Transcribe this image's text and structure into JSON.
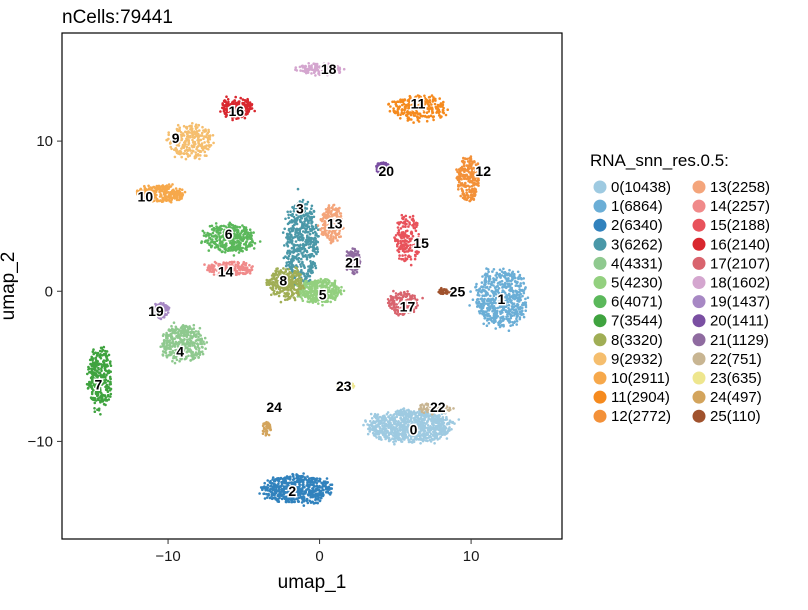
{
  "chart_data": {
    "type": "scatter",
    "title": "nCells:79441",
    "xlabel": "umap_1",
    "ylabel": "umap_2",
    "xlim": [
      -17,
      16
    ],
    "ylim": [
      -16.5,
      17.2
    ],
    "xticks": [
      -10,
      0,
      10
    ],
    "yticks": [
      -10,
      0,
      10
    ],
    "grid": false,
    "legend": {
      "title": "RNA_snn_res.0.5:",
      "position": "right",
      "columns": 2
    },
    "clusters": [
      {
        "id": "0",
        "label": "0(10438)",
        "count": 10438,
        "color": "#9ECAE1",
        "center": [
          6.0,
          -9.0
        ],
        "spread": [
          2.9,
          1.1
        ],
        "label_pos": [
          6.2,
          -9.2
        ]
      },
      {
        "id": "1",
        "label": "1(6864)",
        "count": 6864,
        "color": "#6BAED6",
        "center": [
          12.0,
          -0.5
        ],
        "spread": [
          1.8,
          2.0
        ],
        "label_pos": [
          12.0,
          -0.5
        ]
      },
      {
        "id": "2",
        "label": "2(6340)",
        "count": 6340,
        "color": "#3182BD",
        "center": [
          -1.5,
          -13.2
        ],
        "spread": [
          2.4,
          1.0
        ],
        "label_pos": [
          -1.8,
          -13.3
        ]
      },
      {
        "id": "3",
        "label": "3(6262)",
        "count": 6262,
        "color": "#4A98A8",
        "center": [
          -1.2,
          3.2
        ],
        "spread": [
          1.1,
          3.0
        ],
        "label_pos": [
          -1.3,
          5.5
        ]
      },
      {
        "id": "4",
        "label": "4(4331)",
        "count": 4331,
        "color": "#8FC98F",
        "center": [
          -9.0,
          -3.5
        ],
        "spread": [
          1.5,
          1.3
        ],
        "label_pos": [
          -9.2,
          -4.0
        ]
      },
      {
        "id": "5",
        "label": "5(4230)",
        "count": 4230,
        "color": "#93D07F",
        "center": [
          0.0,
          0.0
        ],
        "spread": [
          1.5,
          0.8
        ],
        "label_pos": [
          0.2,
          -0.2
        ]
      },
      {
        "id": "6",
        "label": "6(4071)",
        "count": 4071,
        "color": "#5BB85B",
        "center": [
          -6.0,
          3.5
        ],
        "spread": [
          1.8,
          1.0
        ],
        "label_pos": [
          -6.0,
          3.8
        ]
      },
      {
        "id": "7",
        "label": "7(3544)",
        "count": 3544,
        "color": "#3FA33F",
        "center": [
          -14.5,
          -5.8
        ],
        "spread": [
          0.8,
          2.2
        ],
        "label_pos": [
          -14.6,
          -6.2
        ]
      },
      {
        "id": "8",
        "label": "8(3320)",
        "count": 3320,
        "color": "#A0AE55",
        "center": [
          -2.2,
          0.5
        ],
        "spread": [
          1.2,
          1.1
        ],
        "label_pos": [
          -2.4,
          0.7
        ]
      },
      {
        "id": "9",
        "label": "9(2932)",
        "count": 2932,
        "color": "#F5BE6E",
        "center": [
          -8.5,
          10.0
        ],
        "spread": [
          1.6,
          1.2
        ],
        "label_pos": [
          -9.5,
          10.2
        ]
      },
      {
        "id": "10",
        "label": "10(2911)",
        "count": 2911,
        "color": "#F6A84B",
        "center": [
          -10.5,
          6.5
        ],
        "spread": [
          1.6,
          0.6
        ],
        "label_pos": [
          -11.5,
          6.3
        ]
      },
      {
        "id": "11",
        "label": "11(2904)",
        "count": 2904,
        "color": "#F58A1E",
        "center": [
          6.5,
          12.2
        ],
        "spread": [
          1.9,
          0.9
        ],
        "label_pos": [
          6.5,
          12.5
        ]
      },
      {
        "id": "12",
        "label": "12(2772)",
        "count": 2772,
        "color": "#F39139",
        "center": [
          9.8,
          7.5
        ],
        "spread": [
          0.8,
          1.6
        ],
        "label_pos": [
          10.8,
          8.0
        ]
      },
      {
        "id": "13",
        "label": "13(2258)",
        "count": 2258,
        "color": "#F4A57B",
        "center": [
          0.8,
          4.5
        ],
        "spread": [
          0.8,
          1.3
        ],
        "label_pos": [
          1.0,
          4.5
        ]
      },
      {
        "id": "14",
        "label": "14(2257)",
        "count": 2257,
        "color": "#F08A8A",
        "center": [
          -6.0,
          1.5
        ],
        "spread": [
          1.6,
          0.5
        ],
        "label_pos": [
          -6.2,
          1.3
        ]
      },
      {
        "id": "15",
        "label": "15(2188)",
        "count": 2188,
        "color": "#E8525B",
        "center": [
          5.8,
          3.5
        ],
        "spread": [
          0.9,
          1.8
        ],
        "label_pos": [
          6.7,
          3.2
        ]
      },
      {
        "id": "16",
        "label": "16(2140)",
        "count": 2140,
        "color": "#D9272E",
        "center": [
          -5.5,
          12.2
        ],
        "spread": [
          1.1,
          0.7
        ],
        "label_pos": [
          -5.5,
          12.0
        ]
      },
      {
        "id": "17",
        "label": "17(2107)",
        "count": 2107,
        "color": "#D9646E",
        "center": [
          5.5,
          -0.8
        ],
        "spread": [
          1.0,
          0.8
        ],
        "label_pos": [
          5.8,
          -1.0
        ]
      },
      {
        "id": "18",
        "label": "18(1602)",
        "count": 1602,
        "color": "#D4A6CF",
        "center": [
          0.0,
          14.8
        ],
        "spread": [
          1.5,
          0.4
        ],
        "label_pos": [
          0.6,
          14.8
        ]
      },
      {
        "id": "19",
        "label": "19(1437)",
        "count": 1437,
        "color": "#A788C4",
        "center": [
          -10.5,
          -1.3
        ],
        "spread": [
          0.6,
          0.5
        ],
        "label_pos": [
          -10.8,
          -1.3
        ]
      },
      {
        "id": "20",
        "label": "20(1411)",
        "count": 1411,
        "color": "#7A4FA2",
        "center": [
          4.2,
          8.2
        ],
        "spread": [
          0.5,
          0.4
        ],
        "label_pos": [
          4.4,
          8.0
        ]
      },
      {
        "id": "21",
        "label": "21(1129)",
        "count": 1129,
        "color": "#8F6BA0",
        "center": [
          2.2,
          2.0
        ],
        "spread": [
          0.5,
          0.9
        ],
        "label_pos": [
          2.2,
          1.9
        ]
      },
      {
        "id": "22",
        "label": "22(751)",
        "count": 751,
        "color": "#C8B592",
        "center": [
          7.5,
          -7.8
        ],
        "spread": [
          1.2,
          0.4
        ],
        "label_pos": [
          7.8,
          -7.7
        ]
      },
      {
        "id": "23",
        "label": "23(635)",
        "count": 635,
        "color": "#EEE68E",
        "center": [
          1.8,
          -6.3
        ],
        "spread": [
          0.6,
          0.2
        ],
        "label_pos": [
          1.6,
          -6.3
        ]
      },
      {
        "id": "24",
        "label": "24(497)",
        "count": 497,
        "color": "#D3A45C",
        "center": [
          -3.5,
          -9.2
        ],
        "spread": [
          0.3,
          0.6
        ],
        "label_pos": [
          -3.0,
          -7.7
        ]
      },
      {
        "id": "25",
        "label": "25(110)",
        "count": 110,
        "color": "#A0522D",
        "center": [
          8.3,
          0.0
        ],
        "spread": [
          0.5,
          0.2
        ],
        "label_pos": [
          9.1,
          0.0
        ]
      }
    ]
  }
}
